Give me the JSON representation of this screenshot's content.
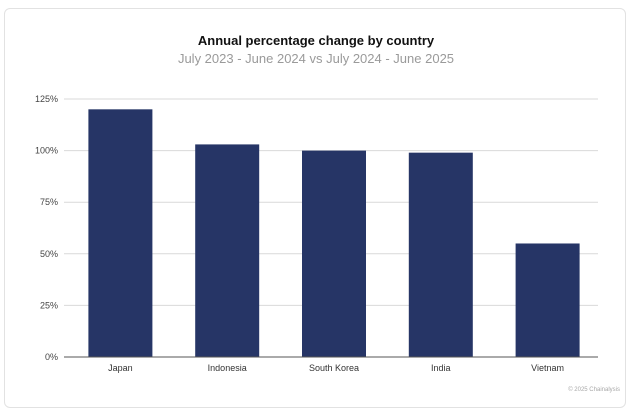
{
  "chart_data": {
    "type": "bar",
    "title": "Annual percentage change by country",
    "subtitle": "July 2023 - June 2024 vs July 2024 - June 2025",
    "categories": [
      "Japan",
      "Indonesia",
      "South Korea",
      "India",
      "Vietnam"
    ],
    "values": [
      120,
      103,
      100,
      99,
      55
    ],
    "y_ticks": [
      "0%",
      "25%",
      "50%",
      "75%",
      "100%",
      "125%"
    ],
    "y_tick_values": [
      0,
      25,
      50,
      75,
      100,
      125
    ],
    "ylim": [
      0,
      125
    ],
    "grid": true,
    "legend": "none",
    "bar_color": "#263566",
    "credit": "© 2025 Chainalysis"
  }
}
